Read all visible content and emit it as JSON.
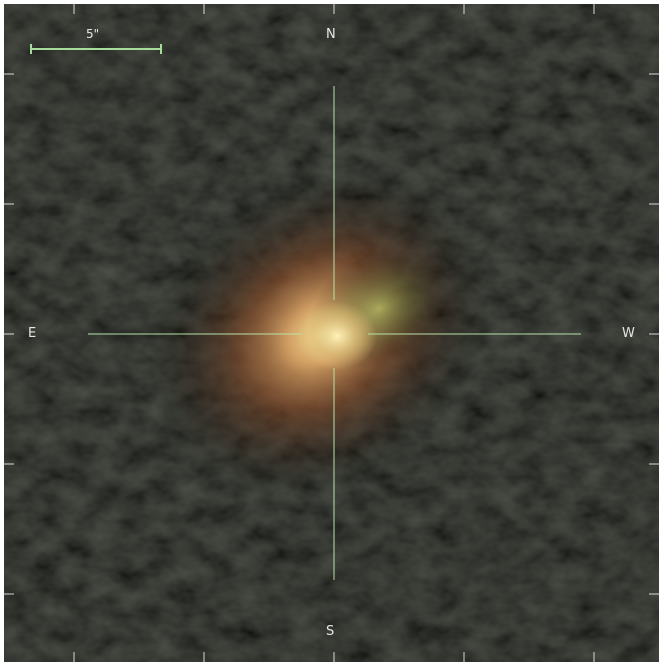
{
  "viewer": {
    "scale_bar_label": "5\"",
    "compass": {
      "north": "N",
      "south": "S",
      "east": "E",
      "west": "W"
    },
    "colors": {
      "background": "#050505",
      "crosshair": "#b8e0a8",
      "scale_bar": "#a6dc9c",
      "object_core": "#e8d48a",
      "object_halo": "#b8703c",
      "object_tint_green": "#9eb85a"
    }
  }
}
